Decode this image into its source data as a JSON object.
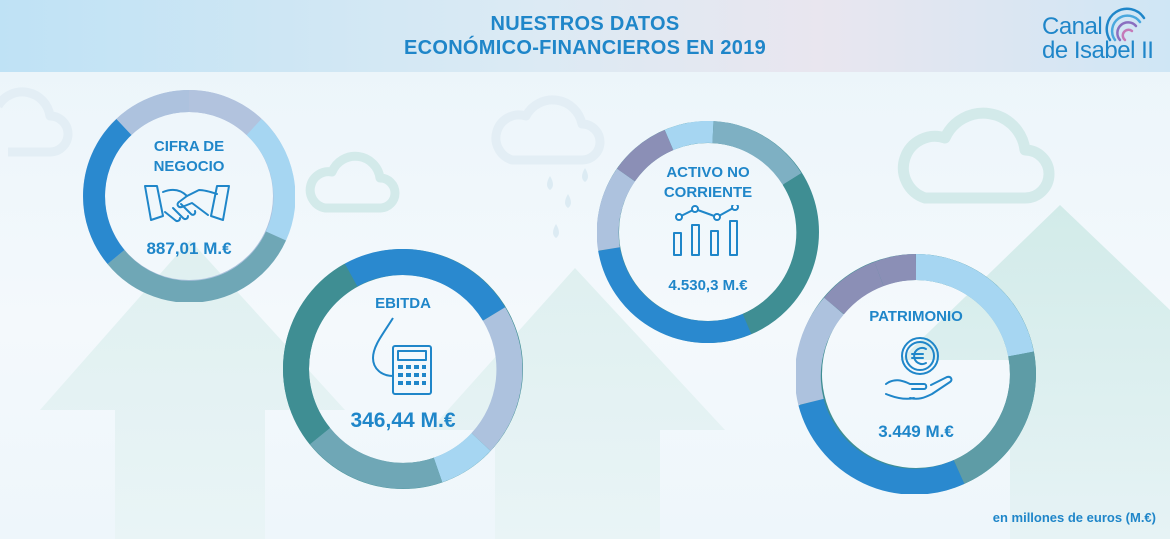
{
  "header": {
    "title_line1": "NUESTROS DATOS",
    "title_line2": "ECONÓMICO-FINANCIEROS EN 2019"
  },
  "logo": {
    "line1": "Canal",
    "line2": "de Isabel II"
  },
  "metrics": [
    {
      "label_line1": "CIFRA DE",
      "label_line2": "NEGOCIO",
      "value": "887,01 M.€",
      "icon": "handshake-icon"
    },
    {
      "label_line1": "EBITDA",
      "value": "346,44 M.€",
      "icon": "water-drop-calculator-icon"
    },
    {
      "label_line1": "ACTIVO NO",
      "label_line2": "CORRIENTE",
      "value": "4.530,3 M.€",
      "icon": "bar-line-chart-icon"
    },
    {
      "label_line1": "PATRIMONIO",
      "value": "3.449 M.€",
      "icon": "euro-coin-hand-icon"
    }
  ],
  "footnote": "en millones de euros (M.€)",
  "colors": {
    "brand_blue": "#1f86c9",
    "ring_blue": "#2a89cf",
    "ring_teal": "#3f8e93",
    "ring_lavender": "#adc2de",
    "ring_sky": "#a6d6f2",
    "ring_purple": "#8b8fb6"
  }
}
